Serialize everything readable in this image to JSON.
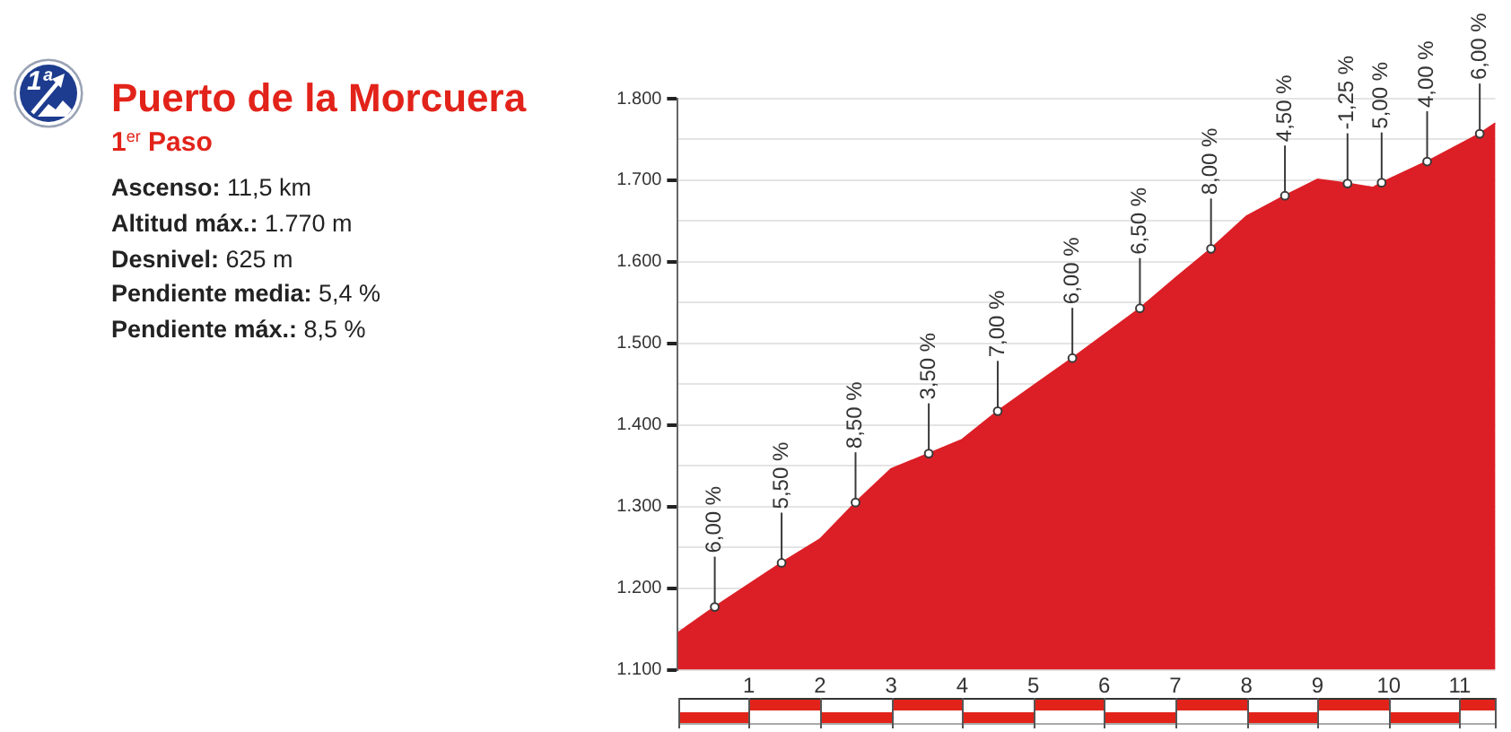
{
  "chart_data": {
    "type": "area",
    "title": "Puerto de la Morcuera",
    "subtitle": "1$^{er}$ Paso",
    "x": [
      0,
      0.52,
      1.46,
      2,
      2.5,
      3,
      3.53,
      4,
      4.5,
      5,
      5.55,
      6.5,
      7,
      7.5,
      8,
      8.54,
      9,
      9.42,
      9.78,
      9.9,
      10.54,
      11.28,
      11.5
    ],
    "values": [
      1145,
      1177,
      1231,
      1260,
      1305,
      1346,
      1365,
      1382,
      1417,
      1448,
      1482,
      1543,
      1580,
      1616,
      1656,
      1681,
      1701,
      1696,
      1691,
      1697,
      1723,
      1757,
      1770
    ],
    "color": "#dc1f26",
    "xlim": [
      0,
      11.5
    ],
    "xticks": [
      1,
      2,
      3,
      4,
      5,
      6,
      7,
      8,
      9,
      10,
      11
    ],
    "ylim": [
      1100,
      1800
    ],
    "yticks": [
      {
        "value": 1100,
        "label": "1.100"
      },
      {
        "value": 1150,
        "label": null
      },
      {
        "value": 1200,
        "label": "1.200"
      },
      {
        "value": 1250,
        "label": null
      },
      {
        "value": 1300,
        "label": "1.300"
      },
      {
        "value": 1350,
        "label": null
      },
      {
        "value": 1400,
        "label": "1.400"
      },
      {
        "value": 1450,
        "label": null
      },
      {
        "value": 1500,
        "label": "1.500"
      },
      {
        "value": 1550,
        "label": null
      },
      {
        "value": 1600,
        "label": "1.600"
      },
      {
        "value": 1650,
        "label": null
      },
      {
        "value": 1700,
        "label": "1.700"
      },
      {
        "value": 1750,
        "label": null
      },
      {
        "value": 1800,
        "label": "1.800"
      }
    ],
    "grid": "y",
    "annotations": [
      "1ª",
      "Ascenso: 11,5 km",
      "Altitud máx.: 1.770 m",
      "Desnivel: 625 m",
      "Pendiente media: 5,4 %",
      "Pendiente máx.: 8,5 %",
      {
        "text": "6,00 %",
        "x": 0.52,
        "y": 1177
      },
      {
        "text": "5,50 %",
        "x": 1.46,
        "y": 1231
      },
      {
        "text": "8,50 %",
        "x": 2.5,
        "y": 1305
      },
      {
        "text": "3,50 %",
        "x": 3.53,
        "y": 1365
      },
      {
        "text": "7,00 %",
        "x": 4.5,
        "y": 1417
      },
      {
        "text": "6,00 %",
        "x": 5.55,
        "y": 1482
      },
      {
        "text": "6,50 %",
        "x": 6.5,
        "y": 1543
      },
      {
        "text": "8,00 %",
        "x": 7.5,
        "y": 1616
      },
      {
        "text": "4,50 %",
        "x": 8.54,
        "y": 1681
      },
      {
        "text": "-1,25 %",
        "x": 9.42,
        "y": 1696
      },
      {
        "text": "5,00 %",
        "x": 9.9,
        "y": 1697
      },
      {
        "text": "4,00 %",
        "x": 10.54,
        "y": 1723
      },
      {
        "text": "6,00 %",
        "x": 11.28,
        "y": 1757
      }
    ]
  }
}
